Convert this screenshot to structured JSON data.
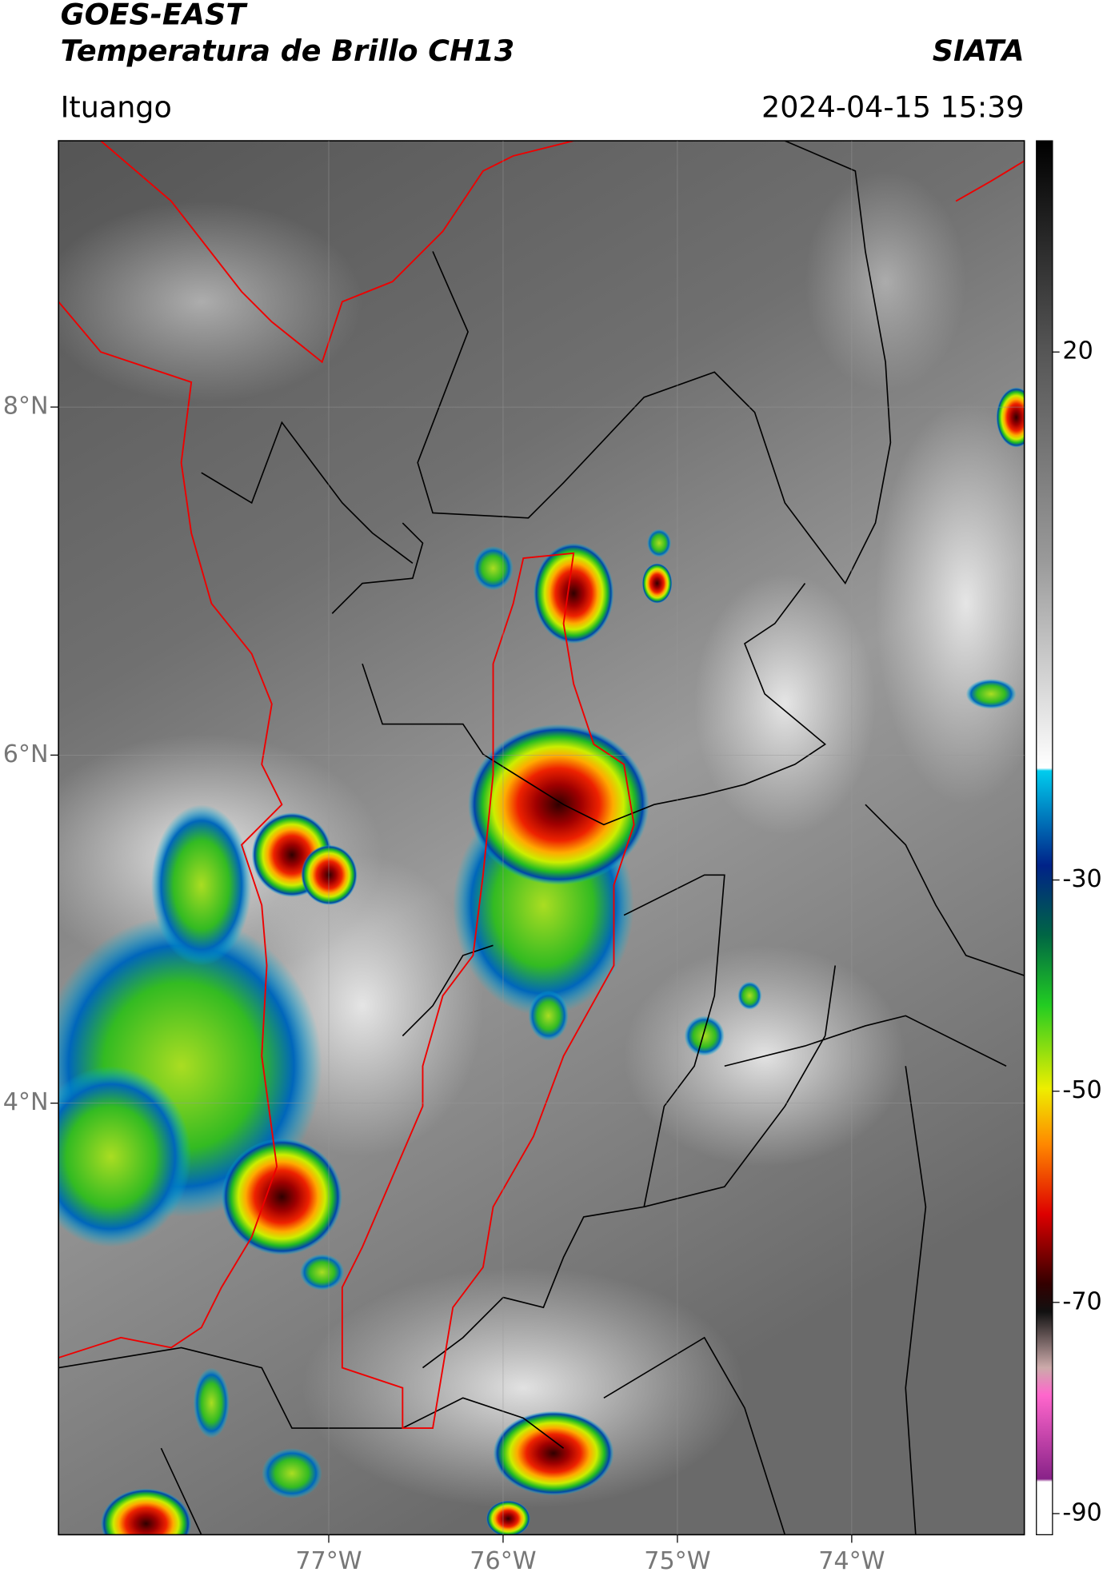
{
  "header": {
    "satellite": "GOES-EAST",
    "product": "Temperatura de Brillo CH13",
    "agency": "SIATA",
    "region": "Ituango",
    "datetime": "2024-04-15 15:39"
  },
  "map": {
    "xlim": [
      -78.55,
      -73.01
    ],
    "ylim": [
      1.52,
      9.53
    ],
    "xticks": [
      {
        "value": -77,
        "label": "77°W"
      },
      {
        "value": -76,
        "label": "76°W"
      },
      {
        "value": -75,
        "label": "75°W"
      },
      {
        "value": -74,
        "label": "74°W"
      }
    ],
    "yticks": [
      {
        "value": 8,
        "label": "8°N"
      },
      {
        "value": 6,
        "label": "6°N"
      },
      {
        "value": 4,
        "label": "4°N"
      }
    ],
    "grid": true
  },
  "colorbar": {
    "ylim": [
      -92,
      40
    ],
    "yticks": [
      20,
      -30,
      -50,
      -70,
      -90
    ]
  }
}
